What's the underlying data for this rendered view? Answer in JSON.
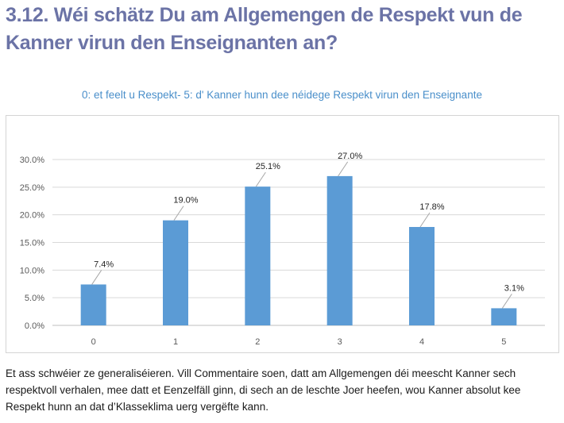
{
  "heading": "3.12. Wéi schätz Du am Allgemengen de Respekt vun de Kanner virun den Enseignanten an?",
  "paragraph": "Et ass schwéier ze generaliséieren. Vill Commentaire soen, datt am Allgemengen déi meescht Kanner sech respektvoll verhalen, mee datt et Eenzelfäll ginn, di sech an de leschte Joer heefen, wou Kanner absolut kee Respekt hunn an dat d’Klasseklima uerg vergëfte kann.",
  "colors": {
    "heading": "#6b73a6",
    "subtitle": "#4a8fca",
    "bar": "#5b9bd5",
    "grid": "#d9d9d9"
  },
  "chart_data": {
    "type": "bar",
    "title": "0: et feelt u Respekt- 5: d' Kanner hunn dee néidege Respekt virun den Enseignante",
    "categories": [
      "0",
      "1",
      "2",
      "3",
      "4",
      "5"
    ],
    "values": [
      7.4,
      19.0,
      25.1,
      27.0,
      17.8,
      3.1
    ],
    "value_labels": [
      "7.4%",
      "19.0%",
      "25.1%",
      "27.0%",
      "17.8%",
      "3.1%"
    ],
    "yticks": [
      "0.0%",
      "5.0%",
      "10.0%",
      "15.0%",
      "20.0%",
      "25.0%",
      "30.0%"
    ],
    "ylim": [
      0,
      30
    ],
    "grid": true,
    "legend": "none"
  }
}
